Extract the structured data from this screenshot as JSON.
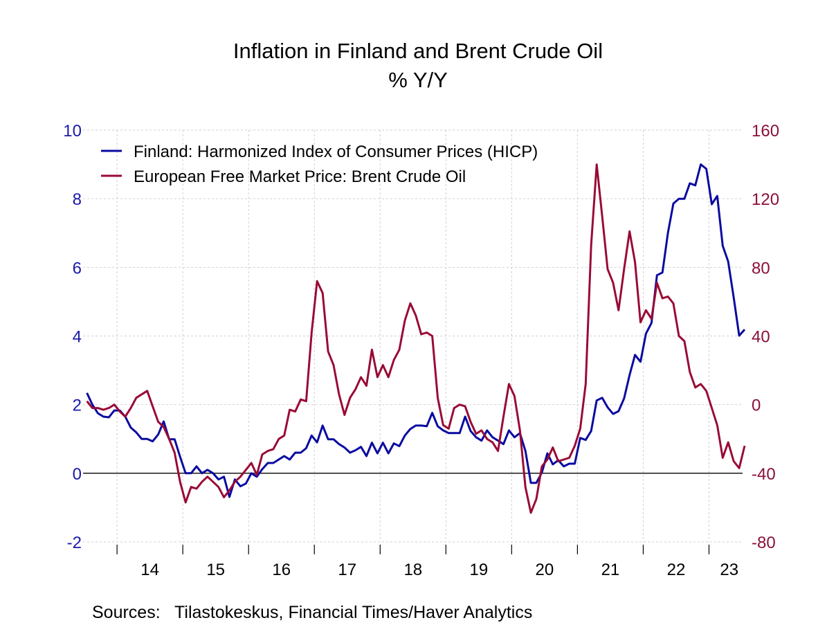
{
  "chart_data": {
    "type": "line",
    "title": "Inflation in Finland and Brent Crude Oil",
    "subtitle": "% Y/Y",
    "source": "Sources:   Tilastokeskus, Financial Times/Haver Analytics",
    "x_start": "2013-07",
    "x_end": "2023-07",
    "frequency": "monthly",
    "x_tick_labels": [
      "14",
      "15",
      "16",
      "17",
      "18",
      "19",
      "20",
      "21",
      "22",
      "23"
    ],
    "y_left": {
      "ylim": [
        -2,
        10
      ],
      "ticks": [
        "-2",
        "0",
        "2",
        "4",
        "6",
        "8",
        "10"
      ],
      "color": "#1a1aa8"
    },
    "y_right": {
      "ylim": [
        -80,
        160
      ],
      "ticks": [
        "-80",
        "-40",
        "0",
        "40",
        "80",
        "120",
        "160"
      ],
      "color": "#8b1038"
    },
    "grid": true,
    "legend_placement": "top-left",
    "series": [
      {
        "name": "Finland: Harmonized Index of Consumer Prices (HICP)",
        "axis": "left",
        "color": "#0a0aa0",
        "values": [
          2.34,
          2.0,
          1.75,
          1.65,
          1.63,
          1.83,
          1.83,
          1.65,
          1.33,
          1.19,
          1.0,
          1.0,
          0.93,
          1.13,
          1.51,
          0.99,
          0.99,
          0.48,
          0,
          0,
          0.2,
          0,
          0.1,
          0,
          -0.18,
          -0.1,
          -0.69,
          -0.18,
          -0.38,
          -0.3,
          0,
          -0.1,
          0.12,
          0.3,
          0.3,
          0.4,
          0.5,
          0.4,
          0.6,
          0.6,
          0.73,
          1.1,
          0.9,
          1.39,
          0.99,
          0.99,
          0.85,
          0.75,
          0.6,
          0.67,
          0.77,
          0.5,
          0.89,
          0.58,
          0.89,
          0.58,
          0.87,
          0.79,
          1.1,
          1.29,
          1.39,
          1.39,
          1.37,
          1.76,
          1.37,
          1.25,
          1.17,
          1.17,
          1.17,
          1.65,
          1.23,
          1.05,
          0.95,
          1.25,
          1.05,
          0.95,
          0.85,
          1.25,
          1.05,
          1.17,
          0.65,
          -0.28,
          -0.28,
          0.02,
          0.58,
          0.26,
          0.38,
          0.2,
          0.28,
          0.28,
          1.03,
          0.97,
          1.23,
          2.12,
          2.2,
          1.92,
          1.73,
          1.81,
          2.18,
          2.86,
          3.45,
          3.25,
          4.07,
          4.38,
          5.77,
          5.85,
          7.0,
          7.86,
          8.0,
          8.0,
          8.45,
          8.39,
          9.0,
          8.87,
          7.84,
          8.08,
          6.63,
          6.17,
          5.12,
          4.01,
          4.19
        ]
      },
      {
        "name": "European Free Market Price: Brent Crude Oil",
        "axis": "right",
        "color": "#990a35",
        "values": [
          2,
          -2,
          -2,
          -3,
          -2,
          0,
          -4,
          -7,
          -2,
          4,
          6,
          8,
          -1,
          -10,
          -13,
          -20,
          -28,
          -45,
          -57,
          -48,
          -49,
          -45,
          -42,
          -45,
          -48,
          -54,
          -50,
          -45,
          -42,
          -38,
          -34,
          -41,
          -29,
          -27,
          -26,
          -20,
          -18,
          -3,
          -4,
          3,
          2,
          42,
          72,
          65,
          31,
          23,
          6,
          -6,
          4,
          9,
          16,
          11,
          32,
          16,
          23,
          16,
          26,
          32,
          49,
          59,
          52,
          41,
          42,
          40,
          4,
          -12,
          -14,
          -2,
          0,
          -1,
          -10,
          -17,
          -15,
          -20,
          -22,
          -27,
          -7,
          12,
          5,
          -15,
          -48,
          -63,
          -55,
          -36,
          -32,
          -25,
          -33,
          -32,
          -31,
          -24,
          -14,
          12,
          93,
          140,
          110,
          79,
          71,
          55,
          79,
          101,
          83,
          48,
          55,
          50,
          71,
          62,
          63,
          59,
          40,
          37,
          19,
          10,
          12,
          8,
          -2,
          -12,
          -31,
          -22,
          -33,
          -37,
          -24
        ]
      }
    ]
  }
}
